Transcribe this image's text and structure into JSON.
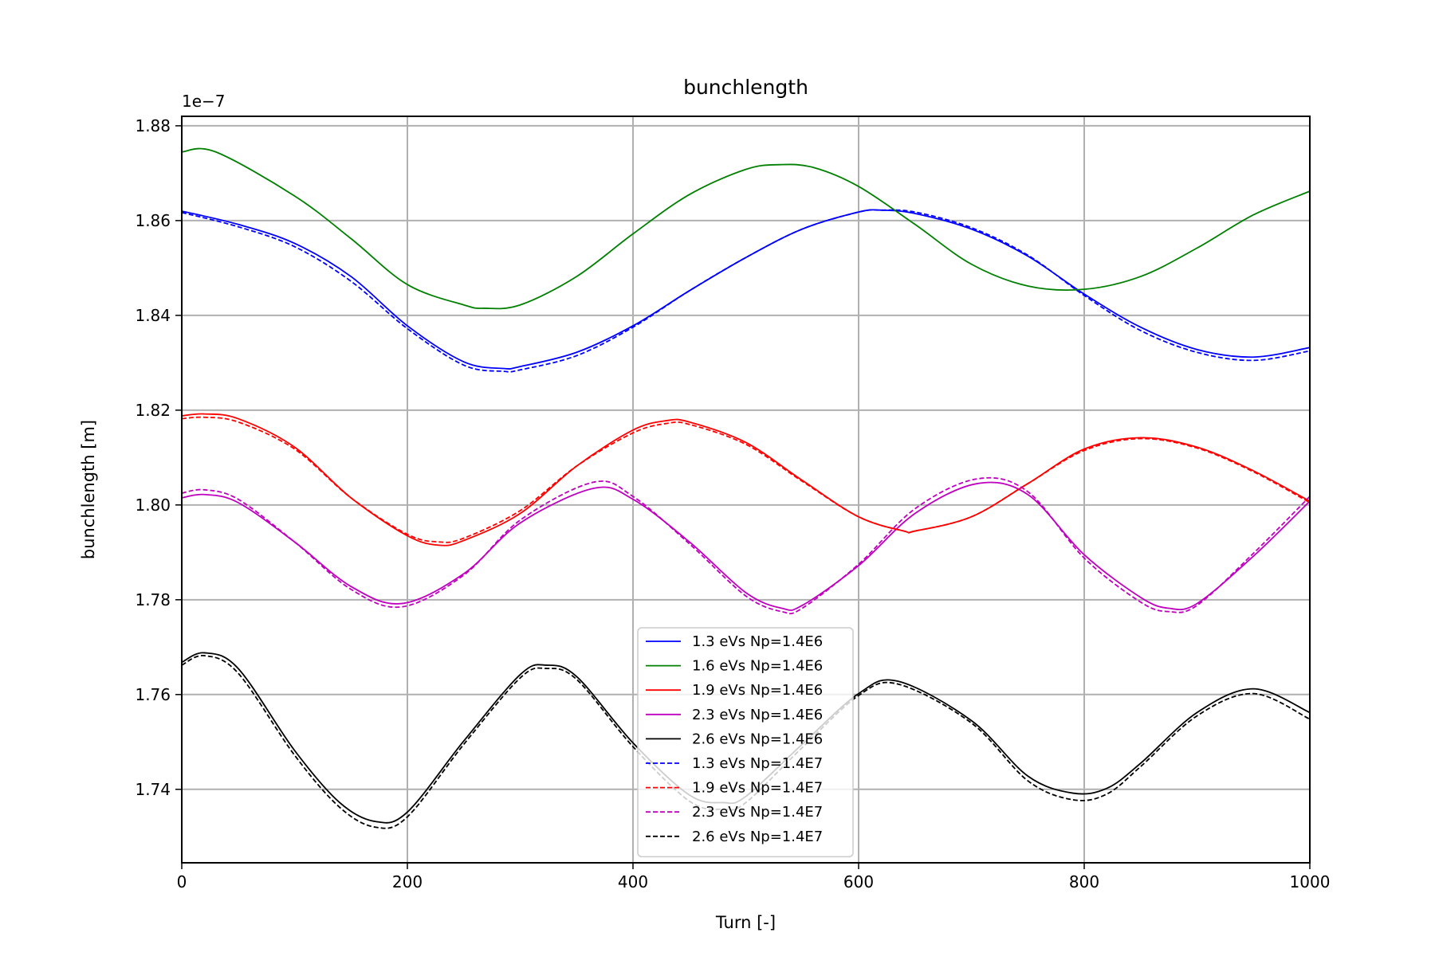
{
  "chart_data": {
    "type": "line",
    "title": "bunchlength",
    "xlabel": "Turn [-]",
    "ylabel": "bunchlength [m]",
    "offset_text": "1e−7",
    "xlim": [
      0,
      1000
    ],
    "ylim": [
      1.7245,
      1.882
    ],
    "xticks": [
      0,
      200,
      400,
      600,
      800,
      1000
    ],
    "xtick_labels": [
      "0",
      "200",
      "400",
      "600",
      "800",
      "1000"
    ],
    "yticks": [
      1.74,
      1.76,
      1.78,
      1.8,
      1.82,
      1.84,
      1.86,
      1.88
    ],
    "ytick_labels": [
      "1.74",
      "1.76",
      "1.78",
      "1.80",
      "1.82",
      "1.84",
      "1.86",
      "1.88"
    ],
    "grid": true,
    "legend_position": "lower-center",
    "series": [
      {
        "name": "1.3 eVs Np=1.4E6",
        "color": "#0000ff",
        "style": "solid",
        "x": [
          0,
          50,
          100,
          150,
          200,
          250,
          285,
          300,
          350,
          400,
          450,
          500,
          550,
          600,
          620,
          650,
          700,
          750,
          800,
          850,
          900,
          950,
          1000
        ],
        "y": [
          1.862,
          1.8592,
          1.8552,
          1.8482,
          1.8378,
          1.8302,
          1.8288,
          1.8292,
          1.8322,
          1.8378,
          1.8452,
          1.8522,
          1.8582,
          1.8618,
          1.8622,
          1.8615,
          1.8582,
          1.8525,
          1.8445,
          1.8375,
          1.8328,
          1.8312,
          1.8332
        ]
      },
      {
        "name": "1.6 eVs Np=1.4E6",
        "color": "#008000",
        "style": "solid",
        "x": [
          0,
          30,
          100,
          150,
          200,
          250,
          268,
          300,
          350,
          400,
          450,
          500,
          530,
          560,
          600,
          650,
          700,
          750,
          800,
          850,
          900,
          950,
          1000
        ],
        "y": [
          1.8745,
          1.8745,
          1.8652,
          1.8562,
          1.8465,
          1.8422,
          1.8415,
          1.8422,
          1.8482,
          1.8572,
          1.8655,
          1.8708,
          1.8718,
          1.8712,
          1.8672,
          1.8592,
          1.8508,
          1.8462,
          1.8455,
          1.8482,
          1.8542,
          1.8612,
          1.8662
        ]
      },
      {
        "name": "1.9 eVs Np=1.4E6",
        "color": "#ff0000",
        "style": "solid",
        "x": [
          0,
          20,
          50,
          100,
          150,
          200,
          228,
          250,
          300,
          350,
          400,
          430,
          450,
          500,
          550,
          600,
          640,
          650,
          700,
          750,
          800,
          850,
          900,
          950,
          1000
        ],
        "y": [
          1.8188,
          1.8192,
          1.8182,
          1.8122,
          1.8015,
          1.7935,
          1.7915,
          1.7925,
          1.7982,
          1.8082,
          1.8158,
          1.8178,
          1.8175,
          1.8132,
          1.8052,
          1.7975,
          1.7945,
          1.7945,
          1.7975,
          1.8045,
          1.8118,
          1.8142,
          1.8122,
          1.8072,
          1.8008
        ]
      },
      {
        "name": "2.3 eVs Np=1.4E6",
        "color": "#bf00bf",
        "style": "solid",
        "x": [
          0,
          20,
          50,
          100,
          150,
          195,
          250,
          300,
          365,
          400,
          450,
          500,
          532,
          550,
          600,
          650,
          705,
          750,
          800,
          850,
          875,
          900,
          950,
          1000
        ],
        "y": [
          1.8015,
          1.8022,
          1.8005,
          1.7922,
          1.7828,
          1.7792,
          1.7855,
          1.7962,
          1.8035,
          1.8012,
          1.7922,
          1.7815,
          1.7782,
          1.7788,
          1.7872,
          1.7982,
          1.8045,
          1.8022,
          1.7895,
          1.7805,
          1.7782,
          1.7792,
          1.7892,
          1.8008
        ]
      },
      {
        "name": "2.6 eVs Np=1.4E6",
        "color": "#000000",
        "style": "solid",
        "x": [
          0,
          20,
          50,
          100,
          140,
          172,
          200,
          250,
          300,
          323,
          350,
          400,
          450,
          480,
          500,
          550,
          600,
          635,
          700,
          750,
          790,
          820,
          850,
          900,
          950,
          1000
        ],
        "y": [
          1.7668,
          1.7688,
          1.7655,
          1.7482,
          1.7372,
          1.7332,
          1.7352,
          1.7502,
          1.7642,
          1.7662,
          1.7638,
          1.7498,
          1.7388,
          1.7372,
          1.7385,
          1.7495,
          1.7602,
          1.7628,
          1.7545,
          1.7428,
          1.7392,
          1.7402,
          1.7455,
          1.7562,
          1.7612,
          1.7562
        ]
      },
      {
        "name": "1.3 eVs Np=1.4E7",
        "color": "#0000ff",
        "style": "dashed",
        "x": [
          0,
          50,
          100,
          150,
          200,
          250,
          285,
          300,
          350,
          400,
          450,
          500,
          550,
          600,
          620,
          650,
          700,
          750,
          800,
          850,
          900,
          950,
          1000
        ],
        "y": [
          1.8617,
          1.8587,
          1.8545,
          1.8472,
          1.8372,
          1.8295,
          1.8282,
          1.8285,
          1.8315,
          1.8375,
          1.8452,
          1.8522,
          1.8582,
          1.8618,
          1.8622,
          1.8618,
          1.8585,
          1.8527,
          1.8442,
          1.8368,
          1.8322,
          1.8305,
          1.8325
        ]
      },
      {
        "name": "1.9 eVs Np=1.4E7",
        "color": "#ff0000",
        "style": "dashed",
        "x": [
          0,
          20,
          50,
          100,
          150,
          200,
          228,
          250,
          300,
          350,
          400,
          430,
          450,
          500,
          550,
          600,
          640,
          650,
          700,
          750,
          800,
          850,
          900,
          950,
          1000
        ],
        "y": [
          1.8182,
          1.8185,
          1.8175,
          1.8118,
          1.8015,
          1.7938,
          1.7922,
          1.793,
          1.7988,
          1.8082,
          1.8152,
          1.8172,
          1.817,
          1.8128,
          1.805,
          1.7975,
          1.7945,
          1.7945,
          1.7975,
          1.8045,
          1.8115,
          1.814,
          1.812,
          1.807,
          1.8005
        ]
      },
      {
        "name": "2.3 eVs Np=1.4E7",
        "color": "#bf00bf",
        "style": "dashed",
        "x": [
          0,
          20,
          50,
          100,
          150,
          195,
          250,
          300,
          365,
          400,
          450,
          500,
          532,
          550,
          600,
          650,
          705,
          750,
          800,
          850,
          875,
          900,
          950,
          1000
        ],
        "y": [
          1.8025,
          1.8032,
          1.8012,
          1.7922,
          1.7822,
          1.7785,
          1.7852,
          1.7968,
          1.8048,
          1.8018,
          1.7918,
          1.7808,
          1.7775,
          1.7782,
          1.7875,
          1.7992,
          1.8055,
          1.8028,
          1.7888,
          1.7795,
          1.7775,
          1.7788,
          1.7898,
          1.8018
        ]
      },
      {
        "name": "2.6 eVs Np=1.4E7",
        "color": "#000000",
        "style": "dashed",
        "x": [
          0,
          20,
          50,
          100,
          140,
          172,
          200,
          250,
          300,
          323,
          350,
          400,
          450,
          480,
          500,
          550,
          600,
          635,
          700,
          750,
          790,
          820,
          850,
          900,
          950,
          1000
        ],
        "y": [
          1.7662,
          1.7682,
          1.7645,
          1.7472,
          1.7362,
          1.732,
          1.7342,
          1.7495,
          1.7635,
          1.7655,
          1.7632,
          1.749,
          1.7375,
          1.7358,
          1.7372,
          1.7488,
          1.7598,
          1.7622,
          1.754,
          1.7418,
          1.7378,
          1.739,
          1.7448,
          1.7555,
          1.7602,
          1.7548
        ]
      }
    ]
  }
}
